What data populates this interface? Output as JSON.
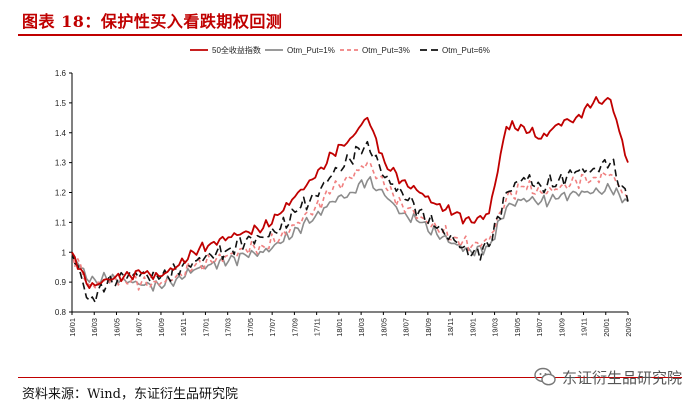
{
  "header": {
    "title": "图表 18：保护性买入看跌期权回测"
  },
  "footer": {
    "source": "资料来源：Wind，东证衍生品研究院",
    "watermark": "东证衍生品研究院"
  },
  "colors": {
    "accent": "#c00000",
    "otm1": "#8c8c8c",
    "otm3": "#f08080",
    "otm6": "#111111"
  },
  "chart_data": {
    "type": "line",
    "title": "",
    "xlabel": "",
    "ylabel": "",
    "ylim": [
      0.8,
      1.6
    ],
    "yticks": [
      "0.8",
      "0.9",
      "1",
      "1.1",
      "1.2",
      "1.3",
      "1.4",
      "1.5",
      "1.6"
    ],
    "grid": false,
    "legend_position": "top",
    "x_tick_labels": [
      "16/01",
      "16/03",
      "16/05",
      "16/07",
      "16/09",
      "16/11",
      "17/01",
      "17/03",
      "17/05",
      "17/07",
      "17/09",
      "17/11",
      "18/01",
      "18/03",
      "18/05",
      "18/07",
      "18/09",
      "18/11",
      "19/01",
      "19/03",
      "19/05",
      "19/07",
      "19/09",
      "19/11",
      "20/01",
      "20/03"
    ],
    "series": [
      {
        "name": "50全收益指数",
        "style": "solid",
        "color": "#c00000",
        "values": [
          1.0,
          0.88,
          0.91,
          0.92,
          0.93,
          0.92,
          0.95,
          1.0,
          1.03,
          1.05,
          1.07,
          1.08,
          1.13,
          1.2,
          1.25,
          1.33,
          1.38,
          1.45,
          1.3,
          1.24,
          1.2,
          1.16,
          1.13,
          1.1,
          1.13,
          1.42,
          1.42,
          1.38,
          1.43,
          1.45,
          1.5,
          1.51,
          1.3
        ]
      },
      {
        "name": "Otm_Put=1%",
        "style": "solid",
        "color": "#8c8c8c",
        "values": [
          1.0,
          0.9,
          0.91,
          0.91,
          0.89,
          0.89,
          0.91,
          0.94,
          0.96,
          0.97,
          0.99,
          1.0,
          1.03,
          1.08,
          1.12,
          1.17,
          1.2,
          1.24,
          1.19,
          1.13,
          1.1,
          1.06,
          1.03,
          1.0,
          1.02,
          1.15,
          1.18,
          1.17,
          1.18,
          1.2,
          1.2,
          1.21,
          1.17
        ]
      },
      {
        "name": "Otm_Put=3%",
        "style": "dashed",
        "color": "#f08080",
        "values": [
          1.0,
          0.89,
          0.9,
          0.91,
          0.9,
          0.89,
          0.92,
          0.95,
          0.97,
          0.99,
          1.01,
          1.02,
          1.05,
          1.1,
          1.15,
          1.21,
          1.25,
          1.3,
          1.22,
          1.16,
          1.12,
          1.08,
          1.05,
          1.02,
          1.04,
          1.18,
          1.22,
          1.2,
          1.21,
          1.24,
          1.25,
          1.26,
          1.18
        ]
      },
      {
        "name": "Otm_Put=6%",
        "style": "dashed",
        "color": "#111111",
        "values": [
          1.0,
          0.84,
          0.89,
          0.92,
          0.93,
          0.91,
          0.94,
          0.97,
          0.99,
          1.01,
          1.04,
          1.05,
          1.08,
          1.14,
          1.19,
          1.26,
          1.31,
          1.37,
          1.25,
          1.2,
          1.14,
          1.08,
          1.04,
          0.99,
          1.02,
          1.2,
          1.25,
          1.22,
          1.24,
          1.27,
          1.28,
          1.3,
          1.17
        ]
      }
    ]
  }
}
